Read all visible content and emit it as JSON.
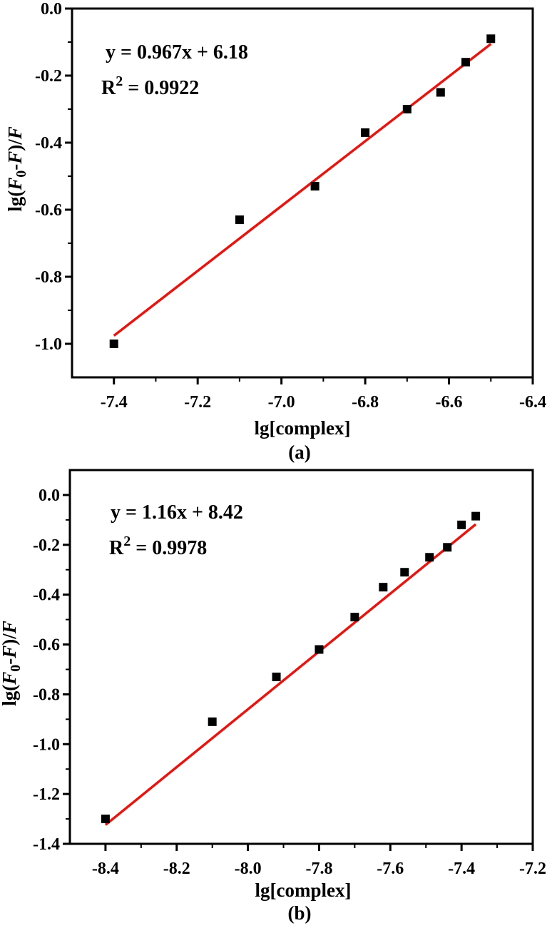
{
  "chart_data": [
    {
      "type": "scatter",
      "panel_label": "(a)",
      "xlabel": "lg[complex]",
      "ylabel": {
        "pre": "lg(",
        "f0": "F",
        "sub": "0",
        "mid": "-",
        "f": "F",
        "mid2": ")/",
        "f2": "F"
      },
      "xlim": [
        -7.5,
        -6.4
      ],
      "ylim": [
        -1.1,
        0.0
      ],
      "xticks": [
        -7.4,
        -7.2,
        -7.0,
        -6.8,
        -6.6,
        -6.4
      ],
      "xtick_labels": [
        "-7.4",
        "-7.2",
        "-7.0",
        "-6.8",
        "-6.6",
        "-6.4"
      ],
      "yticks": [
        0.0,
        -0.2,
        -0.4,
        -0.6,
        -0.8,
        -1.0
      ],
      "ytick_labels": [
        "0.0",
        "-0.2",
        "-0.4",
        "-0.6",
        "-0.8",
        "-1.0"
      ],
      "x": [
        -7.4,
        -7.1,
        -6.92,
        -6.8,
        -6.7,
        -6.62,
        -6.56,
        -6.5
      ],
      "y": [
        -1.0,
        -0.63,
        -0.53,
        -0.37,
        -0.3,
        -0.25,
        -0.16,
        -0.09
      ],
      "fit": {
        "slope": 0.967,
        "intercept": 6.18,
        "x_range": [
          -7.4,
          -6.5
        ],
        "color": "#e8140f"
      },
      "equation_text": "y = 0.967x + 6.18",
      "r2_text": {
        "base": "R",
        "sup": "2",
        "rest": " = 0.9922"
      },
      "grid": false
    },
    {
      "type": "scatter",
      "panel_label": "(b)",
      "xlabel": "lg[complex]",
      "ylabel": {
        "pre": "lg(",
        "f0": "F",
        "sub": "0",
        "mid": "-",
        "f": "F",
        "mid2": ")/",
        "f2": "F"
      },
      "xlim": [
        -8.5,
        -7.2
      ],
      "ylim": [
        -1.4,
        0.1
      ],
      "xticks": [
        -8.4,
        -8.2,
        -8.0,
        -7.8,
        -7.6,
        -7.4,
        -7.2
      ],
      "xtick_labels": [
        "-8.4",
        "-8.2",
        "-8.0",
        "-7.8",
        "-7.6",
        "-7.4",
        "-7.2"
      ],
      "yticks": [
        0.0,
        -0.2,
        -0.4,
        -0.6,
        -0.8,
        -1.0,
        -1.2,
        -1.4
      ],
      "ytick_labels": [
        "0.0",
        "-0.2",
        "-0.4",
        "-0.6",
        "-0.8",
        "-1.0",
        "-1.2",
        "-1.4"
      ],
      "x": [
        -8.4,
        -8.1,
        -7.92,
        -7.8,
        -7.7,
        -7.62,
        -7.56,
        -7.49,
        -7.44,
        -7.4,
        -7.36
      ],
      "y": [
        -1.3,
        -0.91,
        -0.73,
        -0.62,
        -0.49,
        -0.37,
        -0.31,
        -0.25,
        -0.21,
        -0.12,
        -0.085
      ],
      "fit": {
        "slope": 1.16,
        "intercept": 8.42,
        "x_range": [
          -8.4,
          -7.36
        ],
        "color": "#e8140f"
      },
      "equation_text": "y = 1.16x + 8.42",
      "r2_text": {
        "base": "R",
        "sup": "2",
        "rest": " = 0.9978"
      },
      "grid": false
    }
  ]
}
